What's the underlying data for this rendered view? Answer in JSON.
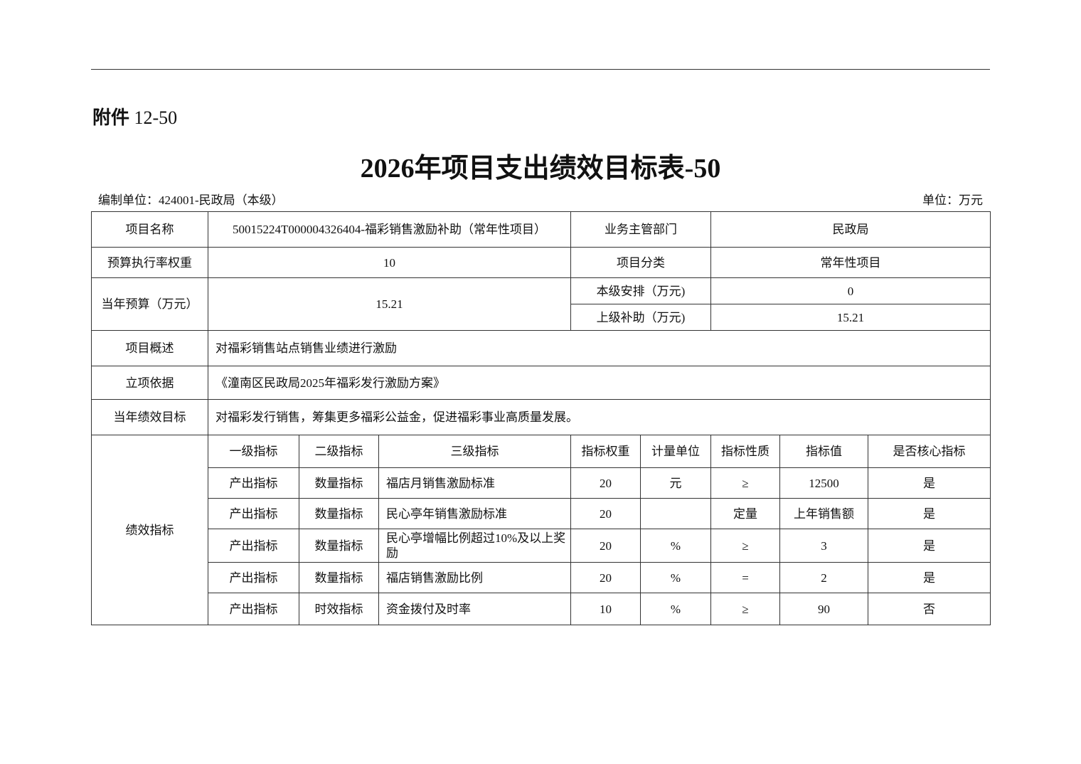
{
  "attachment": {
    "label": "附件",
    "number": "12-50"
  },
  "title": "2026年项目支出绩效目标表-50",
  "compiler": "编制单位：424001-民政局（本级）",
  "unit": "单位：万元",
  "info": {
    "project_name_label": "项目名称",
    "project_name": "50015224T000004326404-福彩销售激励补助（常年性项目）",
    "dept_label": "业务主管部门",
    "dept": "民政局",
    "weight_label": "预算执行率权重",
    "weight": "10",
    "category_label": "项目分类",
    "category": "常年性项目",
    "budget_label": "当年预算（万元）",
    "budget": "15.21",
    "local_label": "本级安排（万元)",
    "local": "0",
    "upper_label": "上级补助（万元)",
    "upper": "15.21",
    "overview_label": "项目概述",
    "overview": "对福彩销售站点销售业绩进行激励",
    "basis_label": "立项依据",
    "basis": "《潼南区民政局2025年福彩发行激励方案》",
    "goal_label": "当年绩效目标",
    "goal": "对福彩发行销售，筹集更多福彩公益金，促进福彩事业高质量发展。",
    "indicator_label": "绩效指标"
  },
  "indicators": {
    "headers": [
      "一级指标",
      "二级指标",
      "三级指标",
      "指标权重",
      "计量单位",
      "指标性质",
      "指标值",
      "是否核心指标"
    ],
    "rows": [
      [
        "产出指标",
        "数量指标",
        "福店月销售激励标准",
        "20",
        "元",
        "≥",
        "12500",
        "是"
      ],
      [
        "产出指标",
        "数量指标",
        "民心亭年销售激励标准",
        "20",
        "",
        "定量",
        "上年销售额",
        "是"
      ],
      [
        "产出指标",
        "数量指标",
        "民心亭增幅比例超过10%及以上奖励",
        "20",
        "%",
        "≥",
        "3",
        "是"
      ],
      [
        "产出指标",
        "数量指标",
        "福店销售激励比例",
        "20",
        "%",
        "=",
        "2",
        "是"
      ],
      [
        "产出指标",
        "时效指标",
        "资金拨付及时率",
        "10",
        "%",
        "≥",
        "90",
        "否"
      ]
    ]
  }
}
